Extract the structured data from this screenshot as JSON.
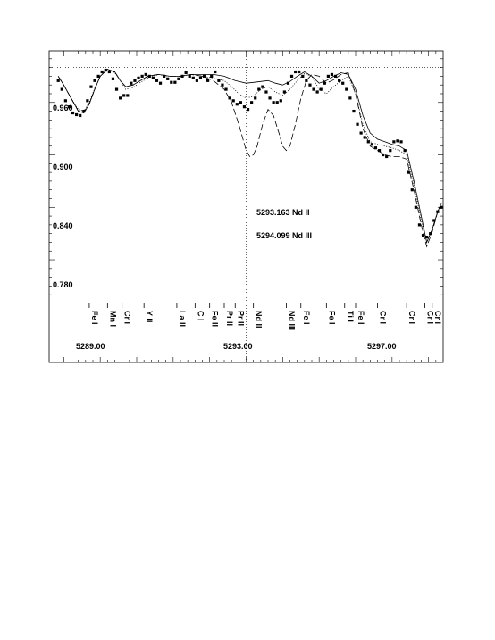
{
  "chart_data": {
    "type": "line",
    "title": "",
    "xlabel": "",
    "ylabel": "",
    "xlim": [
      5287.6,
      5298.4
    ],
    "ylim": [
      0.73,
      1.019
    ],
    "reference_line_y": 1.0,
    "marker_x": 5293.0,
    "yticks": [
      0.78,
      0.84,
      0.9,
      0.96
    ],
    "ytick_labels": [
      "0.780",
      "0.840",
      "0.900",
      "0.960"
    ],
    "xticks": [
      5289.0,
      5293.0,
      5297.0
    ],
    "xtick_labels": [
      "5289.00",
      "5293.00",
      "5297.00"
    ],
    "annotations": [
      {
        "text": "5293.163  Nd II",
        "x": 5293.2,
        "y": 0.866
      },
      {
        "text": "5294.099  Nd III",
        "x": 5293.2,
        "y": 0.834
      }
    ],
    "line_labels": [
      {
        "x": 5288.7,
        "text": "Fe I"
      },
      {
        "x": 5289.2,
        "text": "Mn I"
      },
      {
        "x": 5289.6,
        "text": "Cr I"
      },
      {
        "x": 5290.2,
        "text": "Y II"
      },
      {
        "x": 5291.1,
        "text": "La II"
      },
      {
        "x": 5291.6,
        "text": "C I"
      },
      {
        "x": 5292.0,
        "text": "Fe II"
      },
      {
        "x": 5292.4,
        "text": "Pr II"
      },
      {
        "x": 5292.7,
        "text": "Pr II"
      },
      {
        "x": 5293.2,
        "text": "Nd II"
      },
      {
        "x": 5294.1,
        "text": "Nd III"
      },
      {
        "x": 5294.5,
        "text": "Fe I"
      },
      {
        "x": 5295.2,
        "text": "Fe I"
      },
      {
        "x": 5295.7,
        "text": "Ti I"
      },
      {
        "x": 5296.0,
        "text": "Fe I"
      },
      {
        "x": 5296.6,
        "text": "Cr I"
      },
      {
        "x": 5297.4,
        "text": "Cr I"
      },
      {
        "x": 5297.9,
        "text": "Cr I"
      },
      {
        "x": 5298.1,
        "text": "Cr I"
      }
    ],
    "series": [
      {
        "style": "points",
        "x": [
          5287.85,
          5287.95,
          5288.05,
          5288.15,
          5288.25,
          5288.35,
          5288.45,
          5288.55,
          5288.65,
          5288.75,
          5288.85,
          5288.95,
          5289.05,
          5289.15,
          5289.25,
          5289.35,
          5289.45,
          5289.55,
          5289.65,
          5289.75,
          5289.85,
          5289.95,
          5290.05,
          5290.15,
          5290.25,
          5290.35,
          5290.45,
          5290.55,
          5290.65,
          5290.75,
          5290.85,
          5290.95,
          5291.05,
          5291.15,
          5291.25,
          5291.35,
          5291.45,
          5291.55,
          5291.65,
          5291.75,
          5291.85,
          5291.95,
          5292.05,
          5292.15,
          5292.25,
          5292.35,
          5292.45,
          5292.55,
          5292.65,
          5292.75,
          5292.85,
          5292.95,
          5293.05,
          5293.15,
          5293.25,
          5293.35,
          5293.45,
          5293.55,
          5293.65,
          5293.75,
          5293.85,
          5293.95,
          5294.05,
          5294.15,
          5294.25,
          5294.35,
          5294.45,
          5294.55,
          5294.65,
          5294.75,
          5294.85,
          5294.95,
          5295.05,
          5295.15,
          5295.25,
          5295.35,
          5295.45,
          5295.55,
          5295.65,
          5295.75,
          5295.85,
          5295.95,
          5296.05,
          5296.15,
          5296.25,
          5296.35,
          5296.45,
          5296.55,
          5296.65,
          5296.75,
          5296.85,
          5296.95,
          5297.05,
          5297.15,
          5297.25,
          5297.35,
          5297.45,
          5297.55,
          5297.65,
          5297.75,
          5297.85,
          5297.95,
          5298.05,
          5298.15,
          5298.25,
          5298.35
        ],
        "y": [
          0.985,
          0.975,
          0.962,
          0.955,
          0.948,
          0.946,
          0.945,
          0.95,
          0.962,
          0.978,
          0.985,
          0.99,
          0.995,
          0.997,
          0.995,
          0.987,
          0.975,
          0.965,
          0.968,
          0.968,
          0.982,
          0.985,
          0.988,
          0.99,
          0.992,
          0.99,
          0.988,
          0.985,
          0.982,
          0.99,
          0.987,
          0.983,
          0.983,
          0.987,
          0.99,
          0.994,
          0.99,
          0.988,
          0.985,
          0.988,
          0.99,
          0.985,
          0.99,
          0.995,
          0.985,
          0.98,
          0.975,
          0.965,
          0.962,
          0.958,
          0.96,
          0.955,
          0.952,
          0.96,
          0.965,
          0.975,
          0.978,
          0.972,
          0.965,
          0.96,
          0.96,
          0.962,
          0.972,
          0.982,
          0.99,
          0.995,
          0.995,
          0.99,
          0.985,
          0.98,
          0.975,
          0.972,
          0.975,
          0.982,
          0.99,
          0.992,
          0.99,
          0.985,
          0.982,
          0.975,
          0.965,
          0.95,
          0.935,
          0.925,
          0.92,
          0.915,
          0.912,
          0.908,
          0.905,
          0.9,
          0.898,
          0.905,
          0.915,
          0.916,
          0.915,
          0.905,
          0.88,
          0.86,
          0.84,
          0.82,
          0.808,
          0.806,
          0.81,
          0.825,
          0.835,
          0.84
        ]
      },
      {
        "style": "solid",
        "x": [
          5287.85,
          5288.0,
          5288.2,
          5288.4,
          5288.55,
          5288.7,
          5288.85,
          5289.0,
          5289.2,
          5289.4,
          5289.55,
          5289.7,
          5289.9,
          5290.1,
          5290.3,
          5290.6,
          5290.9,
          5291.2,
          5291.5,
          5291.8,
          5292.1,
          5292.4,
          5292.7,
          5293.0,
          5293.2,
          5293.4,
          5293.6,
          5293.8,
          5294.0,
          5294.2,
          5294.4,
          5294.6,
          5294.8,
          5295.0,
          5295.2,
          5295.4,
          5295.6,
          5295.8,
          5296.0,
          5296.2,
          5296.4,
          5296.6,
          5296.8,
          5297.0,
          5297.2,
          5297.4,
          5297.6,
          5297.8,
          5297.95,
          5298.1,
          5298.25,
          5298.35
        ],
        "y": [
          0.99,
          0.98,
          0.965,
          0.95,
          0.948,
          0.958,
          0.975,
          0.99,
          0.998,
          0.995,
          0.985,
          0.978,
          0.98,
          0.985,
          0.99,
          0.992,
          0.99,
          0.99,
          0.992,
          0.992,
          0.992,
          0.99,
          0.985,
          0.982,
          0.983,
          0.984,
          0.985,
          0.982,
          0.98,
          0.984,
          0.99,
          0.995,
          0.99,
          0.982,
          0.985,
          0.99,
          0.994,
          0.992,
          0.975,
          0.945,
          0.925,
          0.918,
          0.915,
          0.912,
          0.91,
          0.905,
          0.87,
          0.83,
          0.8,
          0.815,
          0.835,
          0.845
        ]
      },
      {
        "style": "dashed",
        "x": [
          5287.85,
          5288.0,
          5288.2,
          5288.4,
          5288.55,
          5288.7,
          5288.85,
          5289.0,
          5289.2,
          5289.4,
          5289.55,
          5289.7,
          5289.9,
          5290.1,
          5290.3,
          5290.6,
          5290.9,
          5291.2,
          5291.5,
          5291.8,
          5292.1,
          5292.4,
          5292.6,
          5292.8,
          5293.0,
          5293.1,
          5293.2,
          5293.3,
          5293.45,
          5293.6,
          5293.75,
          5293.9,
          5294.0,
          5294.1,
          5294.2,
          5294.35,
          5294.5,
          5294.65,
          5294.8,
          5295.0,
          5295.2,
          5295.4,
          5295.6,
          5295.8,
          5296.0,
          5296.2,
          5296.4,
          5296.6,
          5296.8,
          5297.0,
          5297.2,
          5297.4,
          5297.6,
          5297.8,
          5297.95,
          5298.1,
          5298.25,
          5298.35
        ],
        "y": [
          0.99,
          0.98,
          0.965,
          0.95,
          0.948,
          0.958,
          0.975,
          0.99,
          0.998,
          0.995,
          0.985,
          0.978,
          0.98,
          0.985,
          0.99,
          0.992,
          0.99,
          0.99,
          0.992,
          0.99,
          0.985,
          0.975,
          0.96,
          0.935,
          0.905,
          0.898,
          0.9,
          0.91,
          0.935,
          0.952,
          0.945,
          0.925,
          0.91,
          0.905,
          0.91,
          0.935,
          0.965,
          0.985,
          0.992,
          0.99,
          0.982,
          0.986,
          0.992,
          0.994,
          0.97,
          0.93,
          0.91,
          0.905,
          0.9,
          0.898,
          0.898,
          0.895,
          0.86,
          0.82,
          0.795,
          0.812,
          0.835,
          0.845
        ]
      },
      {
        "style": "dotted",
        "x": [
          5287.85,
          5288.0,
          5288.2,
          5288.4,
          5288.55,
          5288.7,
          5288.85,
          5289.0,
          5289.2,
          5289.4,
          5289.55,
          5289.7,
          5289.9,
          5290.1,
          5290.3,
          5290.6,
          5290.9,
          5291.2,
          5291.5,
          5291.8,
          5292.1,
          5292.4,
          5292.6,
          5292.8,
          5293.0,
          5293.2,
          5293.4,
          5293.6,
          5293.8,
          5294.0,
          5294.2,
          5294.4,
          5294.6,
          5294.8,
          5295.0,
          5295.2,
          5295.4,
          5295.6,
          5295.8,
          5296.0,
          5296.2,
          5296.4,
          5296.6,
          5296.8,
          5297.0,
          5297.2,
          5297.4,
          5297.6,
          5297.8,
          5297.95,
          5298.1,
          5298.25,
          5298.35
        ],
        "y": [
          0.99,
          0.98,
          0.965,
          0.952,
          0.95,
          0.96,
          0.976,
          0.99,
          0.998,
          0.994,
          0.985,
          0.975,
          0.977,
          0.983,
          0.988,
          0.992,
          0.99,
          0.99,
          0.992,
          0.99,
          0.988,
          0.985,
          0.978,
          0.97,
          0.965,
          0.967,
          0.975,
          0.978,
          0.972,
          0.968,
          0.975,
          0.985,
          0.993,
          0.99,
          0.975,
          0.97,
          0.978,
          0.985,
          0.99,
          0.97,
          0.935,
          0.915,
          0.912,
          0.91,
          0.908,
          0.905,
          0.9,
          0.865,
          0.825,
          0.8,
          0.815,
          0.835,
          0.845
        ]
      }
    ]
  }
}
